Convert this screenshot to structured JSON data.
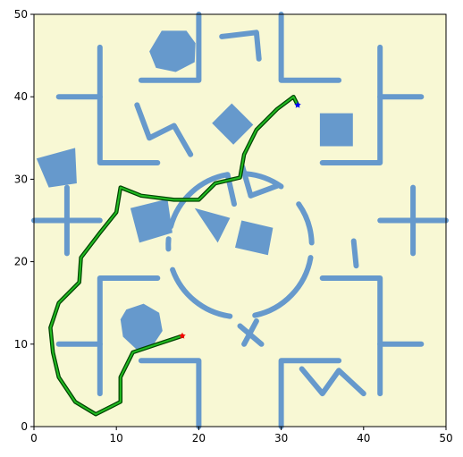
{
  "colors": {
    "background": "#f8f8d4",
    "obstacle": "#6699cc",
    "path_outer": "#004400",
    "path_inner": "#22bb22",
    "start_marker": "#ff0000",
    "goal_marker": "#0000ff",
    "axes": "#000000"
  },
  "chart_data": {
    "type": "path-planning-map",
    "title": "",
    "xlabel": "",
    "ylabel": "",
    "xlim": [
      0,
      50
    ],
    "ylim": [
      0,
      50
    ],
    "xticks": [
      "0",
      "10",
      "20",
      "30",
      "40",
      "50"
    ],
    "yticks": [
      "0",
      "10",
      "20",
      "30",
      "40",
      "50"
    ],
    "grid": false,
    "start": {
      "x": 18,
      "y": 11
    },
    "goal": {
      "x": 32,
      "y": 39
    },
    "path": [
      [
        18,
        11
      ],
      [
        15,
        10
      ],
      [
        12,
        9
      ],
      [
        10.5,
        6
      ],
      [
        10.5,
        3
      ],
      [
        7.5,
        1.5
      ],
      [
        5,
        3
      ],
      [
        3,
        6
      ],
      [
        2.3,
        9
      ],
      [
        2,
        12
      ],
      [
        3,
        15
      ],
      [
        5.5,
        17.5
      ],
      [
        5.7,
        20.5
      ],
      [
        8,
        23.5
      ],
      [
        10,
        26
      ],
      [
        10.5,
        29
      ],
      [
        13,
        28
      ],
      [
        17,
        27.5
      ],
      [
        20,
        27.5
      ],
      [
        22,
        29.5
      ],
      [
        25,
        30.2
      ],
      [
        25.5,
        33
      ],
      [
        27,
        36
      ],
      [
        29.5,
        38.5
      ],
      [
        31.5,
        40
      ],
      [
        32,
        39
      ]
    ],
    "walls": [
      {
        "points": [
          [
            8,
            46
          ],
          [
            8,
            32
          ],
          [
            15,
            32
          ]
        ]
      },
      {
        "points": [
          [
            3,
            40
          ],
          [
            8,
            40
          ]
        ]
      },
      {
        "points": [
          [
            20,
            50
          ],
          [
            20,
            42
          ],
          [
            13,
            42
          ]
        ]
      },
      {
        "points": [
          [
            30,
            50
          ],
          [
            30,
            42
          ],
          [
            37,
            42
          ]
        ]
      },
      {
        "points": [
          [
            42,
            46
          ],
          [
            42,
            32
          ],
          [
            35,
            32
          ]
        ]
      },
      {
        "points": [
          [
            42,
            40
          ],
          [
            47,
            40
          ]
        ]
      },
      {
        "points": [
          [
            0,
            25
          ],
          [
            8,
            25
          ]
        ]
      },
      {
        "points": [
          [
            4,
            29
          ],
          [
            4,
            21
          ]
        ]
      },
      {
        "points": [
          [
            42,
            25
          ],
          [
            50,
            25
          ]
        ]
      },
      {
        "points": [
          [
            46,
            29
          ],
          [
            46,
            21
          ]
        ]
      },
      {
        "points": [
          [
            8,
            4
          ],
          [
            8,
            18
          ],
          [
            15,
            18
          ]
        ]
      },
      {
        "points": [
          [
            3,
            10
          ],
          [
            8,
            10
          ]
        ]
      },
      {
        "points": [
          [
            20,
            0
          ],
          [
            20,
            8
          ],
          [
            13,
            8
          ]
        ]
      },
      {
        "points": [
          [
            30,
            0
          ],
          [
            30,
            8
          ],
          [
            37,
            8
          ]
        ]
      },
      {
        "points": [
          [
            42,
            4
          ],
          [
            42,
            18
          ],
          [
            35,
            18
          ]
        ]
      },
      {
        "points": [
          [
            42,
            10
          ],
          [
            47,
            10
          ]
        ]
      },
      {
        "points": [
          [
            22.8,
            47.3
          ],
          [
            27,
            47.8
          ],
          [
            27.3,
            44.6
          ]
        ]
      },
      {
        "points": [
          [
            12.5,
            39
          ],
          [
            14,
            35
          ],
          [
            17,
            36.5
          ],
          [
            19,
            33
          ]
        ]
      },
      {
        "points": [
          [
            32.5,
            7
          ],
          [
            35,
            4
          ],
          [
            37,
            6.8
          ],
          [
            40,
            4
          ]
        ]
      },
      {
        "points": [
          [
            38.8,
            22.5
          ],
          [
            39.1,
            19.5
          ]
        ]
      },
      {
        "points": [
          [
            25.3,
            31.5
          ],
          [
            26.3,
            28
          ]
        ]
      },
      {
        "points": [
          [
            26.3,
            28
          ],
          [
            29.5,
            29.2
          ]
        ]
      },
      {
        "points": [
          [
            23.5,
            30.5
          ],
          [
            24.3,
            27
          ]
        ]
      },
      {
        "points": [
          [
            25,
            12.2
          ],
          [
            27.6,
            10
          ]
        ]
      },
      {
        "points": [
          [
            25.5,
            10
          ],
          [
            27,
            12.8
          ]
        ]
      }
    ],
    "arcs": [
      {
        "cx": 25,
        "cy": 22,
        "r": 8.7,
        "from": 100,
        "to": 165
      },
      {
        "cx": 25,
        "cy": 22,
        "r": 8.7,
        "from": 175,
        "to": 183
      },
      {
        "cx": 25,
        "cy": 22,
        "r": 8.7,
        "from": 200,
        "to": 262
      },
      {
        "cx": 25,
        "cy": 22,
        "r": 8.7,
        "from": 282,
        "to": 350
      },
      {
        "cx": 25,
        "cy": 22,
        "r": 8.7,
        "from": 2,
        "to": 35
      },
      {
        "cx": 25,
        "cy": 22,
        "r": 8.7,
        "from": 55,
        "to": 85
      }
    ],
    "polygons": [
      {
        "points": [
          [
            15.5,
            48
          ],
          [
            18.5,
            48
          ],
          [
            19.6,
            46.5
          ],
          [
            19.5,
            44.2
          ],
          [
            17.2,
            43
          ],
          [
            14.8,
            43.5
          ],
          [
            14,
            45.5
          ]
        ]
      },
      {
        "points": [
          [
            24,
            39.2
          ],
          [
            26.6,
            36.6
          ],
          [
            24.2,
            34.2
          ],
          [
            21.6,
            36.8
          ]
        ]
      },
      {
        "points": [
          [
            34.7,
            38
          ],
          [
            38.7,
            38
          ],
          [
            38.7,
            34
          ],
          [
            34.7,
            34
          ]
        ]
      },
      {
        "points": [
          [
            0.3,
            32.5
          ],
          [
            5,
            33.8
          ],
          [
            5.2,
            29.5
          ],
          [
            1.8,
            29
          ]
        ]
      },
      {
        "points": [
          [
            11.7,
            26.5
          ],
          [
            16.2,
            27.6
          ],
          [
            16.8,
            23.5
          ],
          [
            12.8,
            22.3
          ]
        ]
      },
      {
        "points": [
          [
            19.5,
            26.5
          ],
          [
            23.8,
            25.3
          ],
          [
            22.3,
            22.3
          ]
        ]
      },
      {
        "points": [
          [
            25.2,
            25
          ],
          [
            29,
            24.1
          ],
          [
            28.4,
            20.8
          ],
          [
            24.4,
            21.7
          ]
        ]
      },
      {
        "points": [
          [
            11.2,
            14.2
          ],
          [
            13.3,
            14.9
          ],
          [
            15.2,
            13.8
          ],
          [
            15.6,
            11.6
          ],
          [
            14.4,
            9.8
          ],
          [
            12.4,
            9.4
          ],
          [
            10.8,
            10.9
          ],
          [
            10.5,
            13
          ]
        ]
      }
    ]
  }
}
